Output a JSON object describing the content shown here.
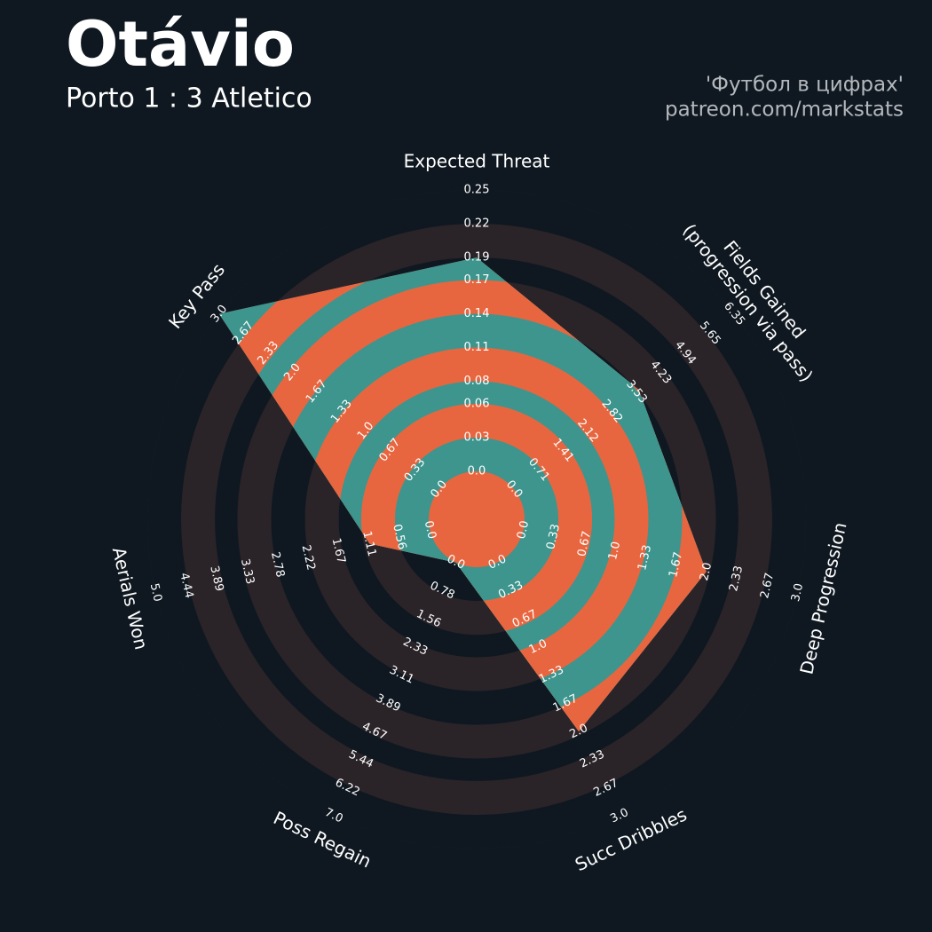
{
  "chart_data": {
    "type": "radar",
    "title": "Otávio",
    "subtitle": "Porto 1 : 3 Atletico",
    "credits": [
      "'Футбол в цифрах'",
      "patreon.com/markstats"
    ],
    "params": [
      "Expected Threat",
      "Fields Gained\n(progression via pass)",
      "Deep Progression",
      "Succ Dribbles",
      "Poss Regain",
      "Aerials Won",
      "Key Pass"
    ],
    "values": [
      0.19,
      3.6,
      2.0,
      2.0,
      0,
      1.1,
      3.0
    ],
    "lims": [
      [
        0,
        0.25
      ],
      [
        0,
        6.35
      ],
      [
        0,
        3
      ],
      [
        0,
        3
      ],
      [
        0,
        7
      ],
      [
        0,
        5
      ],
      [
        0,
        3
      ]
    ],
    "ticks": [
      [
        {
          "value": 0,
          "label": "0.0"
        },
        0.03,
        0.06,
        0.08,
        0.11,
        0.14,
        0.17,
        0.19,
        0.22,
        0.25
      ],
      [
        {
          "value": 0,
          "label": "0.0"
        },
        0.71,
        1.41,
        2.12,
        2.82,
        3.53,
        4.23,
        4.94,
        5.65,
        6.35
      ],
      [
        {
          "value": 0,
          "label": "0.0"
        },
        0.33,
        0.67,
        {
          "value": 1,
          "label": "1.0"
        },
        1.33,
        1.67,
        {
          "value": 2,
          "label": "2.0"
        },
        2.33,
        2.67,
        {
          "value": 3,
          "label": "3.0"
        }
      ],
      [
        {
          "value": 0,
          "label": "0.0"
        },
        0.33,
        0.67,
        {
          "value": 1,
          "label": "1.0"
        },
        1.33,
        1.67,
        {
          "value": 2,
          "label": "2.0"
        },
        2.33,
        2.67,
        {
          "value": 3,
          "label": "3.0"
        }
      ],
      [
        {
          "value": 0,
          "label": "0.0"
        },
        0.78,
        1.56,
        2.33,
        3.11,
        3.89,
        4.67,
        5.44,
        6.22,
        {
          "value": 7,
          "label": "7.0"
        }
      ],
      [
        {
          "value": 0,
          "label": "0.0"
        },
        0.56,
        1.11,
        1.67,
        2.22,
        2.78,
        3.33,
        3.89,
        4.44,
        {
          "value": 5,
          "label": "5.0"
        }
      ],
      [
        {
          "value": 0,
          "label": "0.0"
        },
        0.33,
        0.67,
        {
          "value": 1,
          "label": "1.0"
        },
        1.33,
        1.67,
        {
          "value": 2,
          "label": "2.0"
        },
        2.33,
        2.67,
        {
          "value": 3,
          "label": "3.0"
        }
      ]
    ],
    "ring_colors": [
      "#2a2429",
      "#0f1820"
    ],
    "fill_colors": [
      "#e8663f",
      "#3d958e"
    ]
  }
}
